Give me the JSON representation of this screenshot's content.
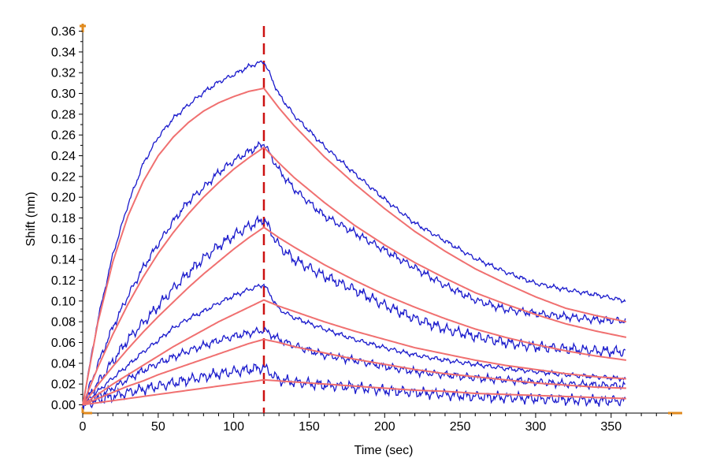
{
  "chart_data": {
    "type": "line",
    "title": "",
    "xlabel": "Time (sec)",
    "ylabel": "Shift (nm)",
    "xlim": [
      0,
      395
    ],
    "ylim": [
      -0.008,
      0.365
    ],
    "x_ticks": [
      0,
      50,
      100,
      150,
      200,
      250,
      300,
      350
    ],
    "y_ticks": [
      0.0,
      0.02,
      0.04,
      0.06,
      0.08,
      0.1,
      0.12,
      0.14,
      0.16,
      0.18,
      0.2,
      0.22,
      0.24,
      0.26,
      0.28,
      0.3,
      0.32,
      0.34,
      0.36
    ],
    "y_tick_labels": [
      "0.00",
      "0.02",
      "0.04",
      "0.06",
      "0.08",
      "0.10",
      "0.12",
      "0.14",
      "0.16",
      "0.18",
      "0.20",
      "0.22",
      "0.24",
      "0.26",
      "0.28",
      "0.30",
      "0.32",
      "0.34",
      "0.36"
    ],
    "x_tick_labels": [
      "0",
      "50",
      "100",
      "150",
      "200",
      "250",
      "300",
      "350"
    ],
    "grid": false,
    "legend": "none",
    "colors": {
      "measured": "#1a1acc",
      "fit": "#f07070",
      "divider": "#cc1111",
      "axis_end_marker": "#e08a1e"
    },
    "divider_x": 120,
    "fit_x": [
      0,
      10,
      20,
      30,
      40,
      50,
      60,
      70,
      80,
      90,
      100,
      110,
      120,
      130,
      140,
      160,
      180,
      200,
      220,
      240,
      260,
      280,
      300,
      320,
      340,
      360
    ],
    "series": [
      {
        "kind": "fit",
        "values": [
          0.0,
          0.079,
          0.138,
          0.182,
          0.215,
          0.24,
          0.258,
          0.272,
          0.283,
          0.291,
          0.297,
          0.302,
          0.305,
          0.286,
          0.269,
          0.239,
          0.213,
          0.189,
          0.167,
          0.148,
          0.131,
          0.117,
          0.104,
          0.093,
          0.086,
          0.08
        ]
      },
      {
        "kind": "fit",
        "values": [
          0.0,
          0.036,
          0.068,
          0.097,
          0.123,
          0.146,
          0.166,
          0.184,
          0.2,
          0.214,
          0.227,
          0.238,
          0.248,
          0.233,
          0.219,
          0.195,
          0.173,
          0.154,
          0.137,
          0.122,
          0.108,
          0.097,
          0.087,
          0.078,
          0.071,
          0.065
        ]
      },
      {
        "kind": "fit",
        "values": [
          0.0,
          0.019,
          0.037,
          0.054,
          0.07,
          0.085,
          0.099,
          0.113,
          0.126,
          0.138,
          0.15,
          0.161,
          0.171,
          0.161,
          0.152,
          0.135,
          0.12,
          0.106,
          0.094,
          0.083,
          0.073,
          0.065,
          0.058,
          0.052,
          0.047,
          0.043
        ]
      },
      {
        "kind": "fit",
        "values": [
          0.0,
          0.01,
          0.02,
          0.029,
          0.038,
          0.047,
          0.056,
          0.064,
          0.072,
          0.08,
          0.087,
          0.094,
          0.101,
          0.095,
          0.09,
          0.08,
          0.071,
          0.063,
          0.055,
          0.049,
          0.043,
          0.038,
          0.034,
          0.03,
          0.027,
          0.025
        ]
      },
      {
        "kind": "fit",
        "values": [
          0.0,
          0.006,
          0.012,
          0.018,
          0.023,
          0.029,
          0.034,
          0.039,
          0.044,
          0.049,
          0.054,
          0.059,
          0.063,
          0.06,
          0.056,
          0.05,
          0.044,
          0.039,
          0.034,
          0.03,
          0.027,
          0.024,
          0.021,
          0.019,
          0.017,
          0.016
        ]
      },
      {
        "kind": "fit",
        "values": [
          0.0,
          0.002,
          0.004,
          0.006,
          0.008,
          0.01,
          0.012,
          0.014,
          0.016,
          0.018,
          0.02,
          0.022,
          0.024,
          0.023,
          0.022,
          0.02,
          0.018,
          0.016,
          0.014,
          0.013,
          0.011,
          0.01,
          0.009,
          0.008,
          0.007,
          0.006
        ]
      },
      {
        "kind": "measured",
        "values": [
          0.0,
          0.082,
          0.145,
          0.193,
          0.232,
          0.258,
          0.276,
          0.289,
          0.301,
          0.311,
          0.318,
          0.326,
          0.331,
          0.299,
          0.279,
          0.249,
          0.223,
          0.198,
          0.175,
          0.158,
          0.141,
          0.128,
          0.117,
          0.111,
          0.106,
          0.1
        ]
      },
      {
        "kind": "measured",
        "values": [
          0.0,
          0.039,
          0.075,
          0.105,
          0.132,
          0.155,
          0.177,
          0.196,
          0.209,
          0.224,
          0.235,
          0.244,
          0.252,
          0.226,
          0.208,
          0.182,
          0.166,
          0.149,
          0.132,
          0.115,
          0.101,
          0.092,
          0.088,
          0.085,
          0.082,
          0.081
        ]
      },
      {
        "kind": "measured",
        "values": [
          0.0,
          0.021,
          0.042,
          0.063,
          0.079,
          0.095,
          0.112,
          0.127,
          0.141,
          0.153,
          0.163,
          0.172,
          0.179,
          0.153,
          0.14,
          0.124,
          0.111,
          0.096,
          0.083,
          0.073,
          0.066,
          0.06,
          0.056,
          0.054,
          0.052,
          0.051
        ]
      },
      {
        "kind": "measured",
        "values": [
          0.0,
          0.013,
          0.026,
          0.038,
          0.051,
          0.062,
          0.074,
          0.083,
          0.09,
          0.098,
          0.105,
          0.111,
          0.116,
          0.092,
          0.084,
          0.073,
          0.063,
          0.055,
          0.048,
          0.043,
          0.039,
          0.035,
          0.032,
          0.029,
          0.027,
          0.025
        ]
      },
      {
        "kind": "measured",
        "values": [
          0.0,
          0.008,
          0.016,
          0.025,
          0.033,
          0.04,
          0.046,
          0.052,
          0.057,
          0.062,
          0.066,
          0.069,
          0.072,
          0.063,
          0.057,
          0.048,
          0.043,
          0.037,
          0.032,
          0.029,
          0.026,
          0.024,
          0.022,
          0.02,
          0.019,
          0.018
        ]
      },
      {
        "kind": "measured",
        "values": [
          0.0,
          0.004,
          0.008,
          0.012,
          0.015,
          0.018,
          0.021,
          0.024,
          0.027,
          0.03,
          0.032,
          0.034,
          0.036,
          0.024,
          0.022,
          0.019,
          0.017,
          0.014,
          0.012,
          0.01,
          0.008,
          0.007,
          0.006,
          0.005,
          0.004,
          0.004
        ]
      }
    ]
  }
}
